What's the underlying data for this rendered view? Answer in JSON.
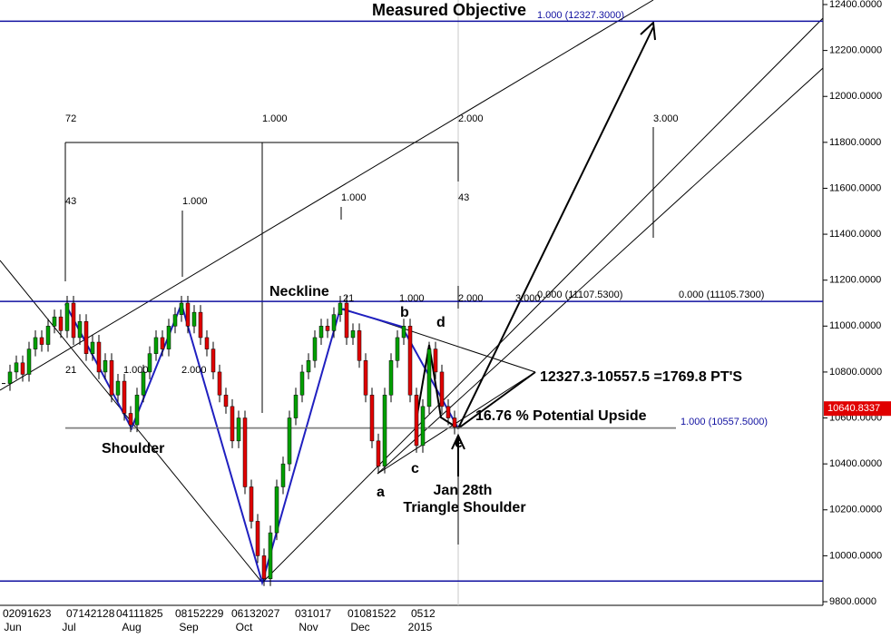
{
  "chart_data": {
    "type": "candlestick",
    "series": [
      {
        "name": "Close",
        "up_color": "#00a000",
        "down_color": "#e00000",
        "values": [
          10750,
          10800,
          10840,
          10790,
          10900,
          10950,
          10920,
          11000,
          11040,
          10980,
          11100,
          10950,
          11020,
          10880,
          10930,
          10800,
          10850,
          10700,
          10760,
          10620,
          10570,
          10700,
          10800,
          10880,
          10950,
          10900,
          11000,
          11050,
          11100,
          11000,
          11060,
          10950,
          10900,
          10800,
          10700,
          10650,
          10500,
          10600,
          10300,
          10150,
          10000,
          9900,
          10100,
          10300,
          10400,
          10600,
          10700,
          10800,
          10850,
          10950,
          11000,
          10980,
          11050,
          11100,
          10950,
          10980,
          10850,
          10700,
          10500,
          10390,
          10700,
          10850,
          10950,
          11000,
          10700,
          10480,
          10650,
          10900,
          10800,
          10650,
          10600,
          10560
        ]
      }
    ],
    "ylim": [
      9800,
      12400
    ],
    "yticks": [
      {
        "value": 9800,
        "label": "9800.0000"
      },
      {
        "value": 10000,
        "label": "10000.0000"
      },
      {
        "value": 10200,
        "label": "10200.0000"
      },
      {
        "value": 10400,
        "label": "10400.0000"
      },
      {
        "value": 10600,
        "label": "10600.0000"
      },
      {
        "value": 10800,
        "label": "10800.0000"
      },
      {
        "value": 11000,
        "label": "11000.0000"
      },
      {
        "value": 11200,
        "label": "11200.0000"
      },
      {
        "value": 11400,
        "label": "11400.0000"
      },
      {
        "value": 11600,
        "label": "11600.0000"
      },
      {
        "value": 11800,
        "label": "11800.0000"
      },
      {
        "value": 12000,
        "label": "12000.0000"
      },
      {
        "value": 12200,
        "label": "12200.0000"
      },
      {
        "value": 12400,
        "label": "12400.0000"
      }
    ],
    "last_price": {
      "value": 10640.8337,
      "label": "10640.8337"
    },
    "levels": [
      {
        "value": 12327.3,
        "color": "#1010a0"
      },
      {
        "value": 11107.53,
        "color": "#1010a0"
      },
      {
        "value": 10557.5,
        "color": "#808080"
      },
      {
        "value": 9890,
        "color": "#1010a0"
      }
    ],
    "months": [
      "Jun",
      "Jul",
      "Aug",
      "Sep",
      "Oct",
      "Nov",
      "Dec",
      "2015"
    ],
    "day_labels": [
      "02091623",
      "07142128",
      "04111825",
      "08152229",
      "06132027",
      "031017",
      "01081522",
      "0512"
    ],
    "annotations": [
      "Measured Objective",
      "1.000 (12327.3000)",
      "72",
      "1.000",
      "2.000",
      "3.000",
      "43",
      "1.000",
      "1.000",
      "43",
      "Neckline",
      "21",
      "1.000",
      "2.000",
      "3.000",
      "0.000 (11107.5300)",
      "0.000 (11105.7300)",
      "21",
      "1.000",
      "2.000",
      "b",
      "d",
      "12327.3-10557.5 =1769.8 PT'S",
      "16.76 % Potential Upside",
      "1.000 (10557.5000)",
      "Shoulder",
      "e",
      "c",
      "a",
      "Jan 28th",
      "Triangle Shoulder"
    ]
  }
}
